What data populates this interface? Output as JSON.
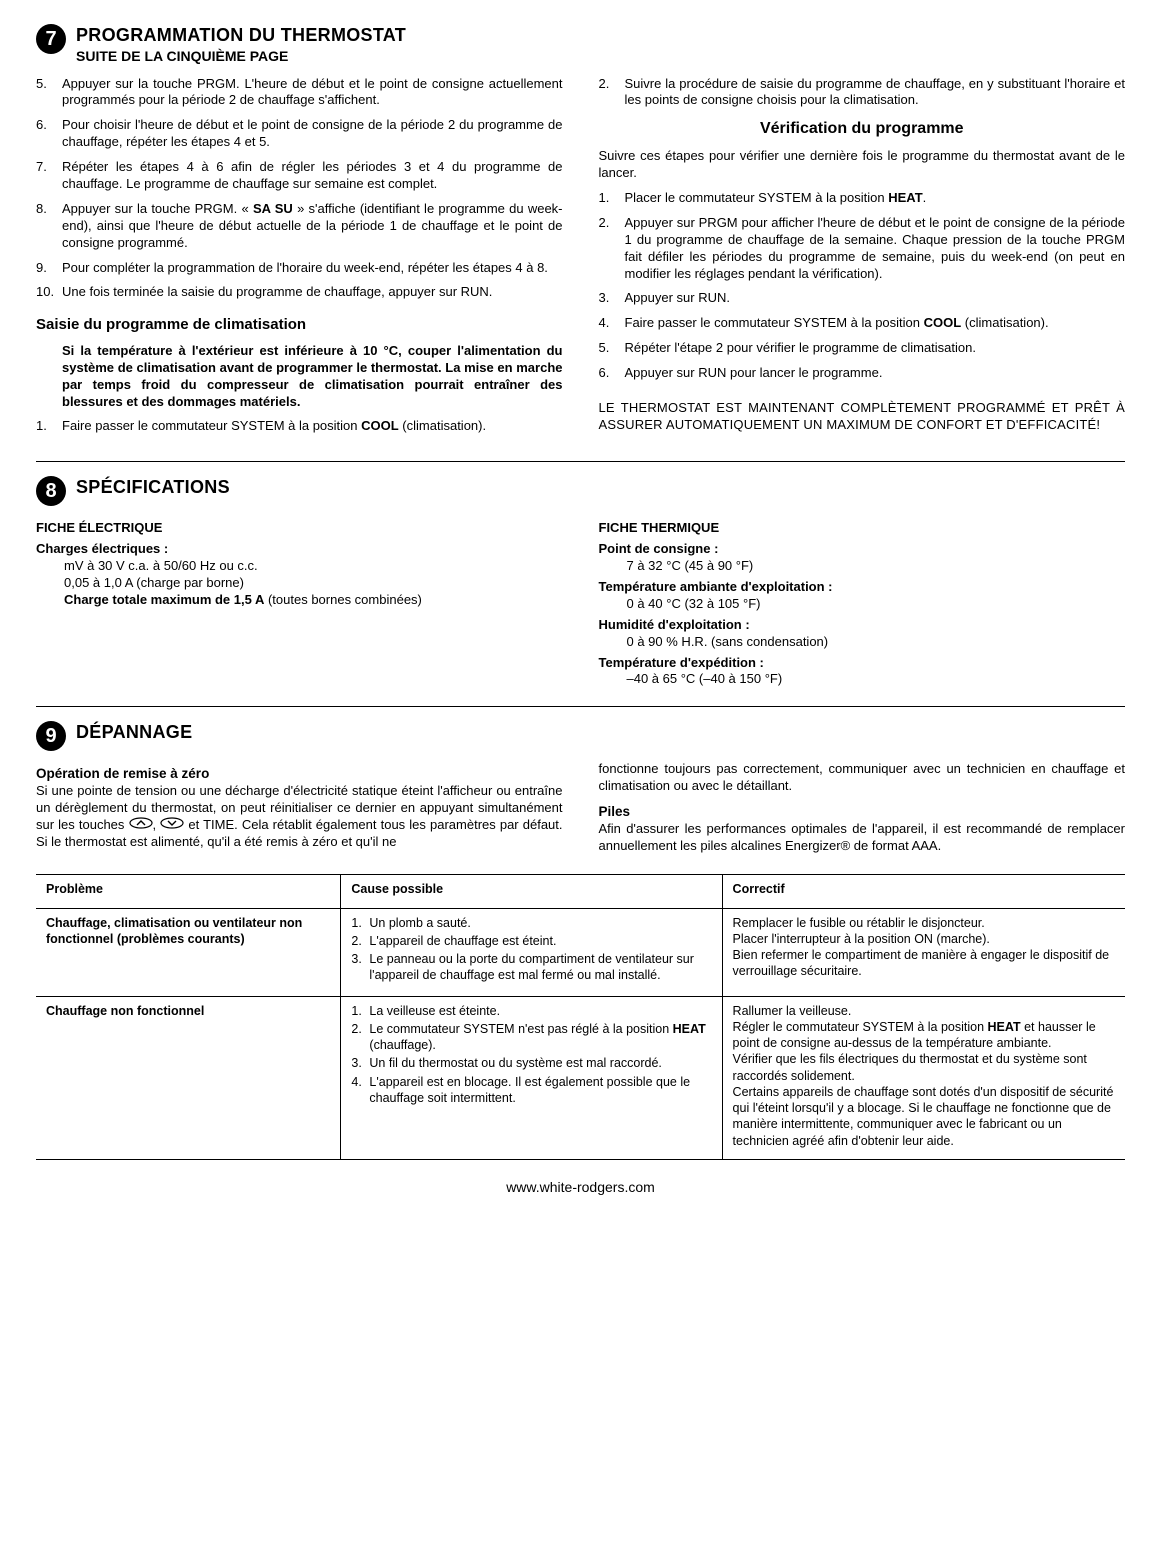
{
  "sec7": {
    "number": "7",
    "title": "PROGRAMMATION DU THERMOSTAT",
    "subtitle": "SUITE DE LA CINQUIÈME PAGE",
    "left_items": [
      {
        "n": "5.",
        "t": "Appuyer sur la touche PRGM. L'heure de début et le point de consigne actuellement programmés pour la période 2 de chauffage s'affichent."
      },
      {
        "n": "6.",
        "t": "Pour choisir l'heure de début et le point de consigne de la période 2 du programme de chauffage, répéter les étapes 4 et 5."
      },
      {
        "n": "7.",
        "t": "Répéter les étapes 4 à 6 afin de régler les périodes 3 et 4 du programme de chauffage. Le programme de chauffage sur semaine est complet."
      },
      {
        "n": "8.",
        "html": "Appuyer sur la touche PRGM. « <b>SA SU</b> » s'affiche (identifiant le programme du week-end), ainsi que l'heure de début actuelle de la période 1 de chauffage et le point de consigne programmé."
      },
      {
        "n": "9.",
        "t": "Pour compléter la programmation de l'horaire du week-end, répéter les étapes 4 à 8."
      },
      {
        "n": "10.",
        "t": "Une fois terminée la saisie du programme de chauffage, appuyer sur RUN."
      }
    ],
    "climat_heading": "Saisie du programme de climatisation",
    "climat_warning": "Si la température à l'extérieur est inférieure à 10 °C, couper l'alimentation du système de climatisation avant de programmer le thermostat. La mise en marche par temps froid du compresseur de climatisation pourrait entraîner des blessures et des dommages matériels.",
    "climat_items": [
      {
        "n": "1.",
        "html": "Faire passer le commutateur SYSTEM à la position <b>COOL</b> (climatisation)."
      }
    ],
    "right_prepend": [
      {
        "n": "2.",
        "t": "Suivre la procédure de saisie du programme de chauffage, en y substituant l'horaire et les points de consigne choisis pour la climatisation."
      }
    ],
    "verify_heading": "Vérification du programme",
    "verify_intro": "Suivre ces étapes pour vérifier une dernière fois le programme du thermostat avant de le lancer.",
    "verify_items": [
      {
        "n": "1.",
        "html": "Placer le commutateur SYSTEM à la position <b>HEAT</b>."
      },
      {
        "n": "2.",
        "t": "Appuyer sur PRGM pour afficher l'heure de début et le point de consigne de la période 1 du programme de chauffage de la semaine. Chaque pression de la touche PRGM fait défiler les périodes du programme de semaine, puis du week-end (on peut en modifier les réglages pendant la vérification)."
      },
      {
        "n": "3.",
        "t": "Appuyer sur RUN."
      },
      {
        "n": "4.",
        "html": "Faire passer le commutateur SYSTEM à la position <b>COOL</b> (climatisation)."
      },
      {
        "n": "5.",
        "t": "Répéter l'étape 2 pour vérifier le programme de climatisation."
      },
      {
        "n": "6.",
        "t": "Appuyer sur RUN pour lancer le programme."
      }
    ],
    "final_note": "LE THERMOSTAT EST MAINTENANT COMPLÈTEMENT PROGRAMMÉ ET PRÊT À ASSURER AUTOMATIQUEMENT UN MAXIMUM DE CONFORT ET D'EFFICACITÉ!"
  },
  "sec8": {
    "number": "8",
    "title": "SPÉCIFICATIONS",
    "elec_heading": "FICHE ÉLECTRIQUE",
    "charges_label": "Charges électriques :",
    "charges_lines": [
      "mV à 30 V c.a. à 50/60 Hz ou c.c.",
      "0,05 à 1,0 A (charge par borne)"
    ],
    "charges_bold": "Charge totale maximum de 1,5 A",
    "charges_bold_tail": " (toutes bornes combinées)",
    "therm_heading": "FICHE THERMIQUE",
    "therm_specs": [
      {
        "label": "Point de consigne :",
        "val": "7 à 32 °C (45 à 90 °F)"
      },
      {
        "label": "Température ambiante d'exploitation :",
        "val": "0 à 40 °C (32 à 105 °F)"
      },
      {
        "label": "Humidité d'exploitation :",
        "val": "0 à 90 % H.R. (sans condensation)"
      },
      {
        "label": "Température d'expédition :",
        "val": "–40 à 65 °C (–40 à 150 °F)"
      }
    ]
  },
  "sec9": {
    "number": "9",
    "title": "DÉPANNAGE",
    "reset_heading": "Opération de remise à zéro",
    "reset_p1_a": "Si une pointe de tension ou une décharge d'électricité statique éteint l'afficheur ou entraîne un dérèglement du thermostat, on peut réinitialiser ce dernier en appuyant simultanément sur les touches ",
    "reset_p1_b": ", ",
    "reset_p1_c": " et TIME. Cela rétablit également tous les paramètres par défaut. Si le thermostat est alimenté, qu'il a été remis à zéro et qu'il ne",
    "right_p1": "fonctionne toujours pas correctement, communiquer avec un technicien en chauffage et climatisation ou avec le détaillant.",
    "piles_heading": "Piles",
    "piles_p": "Afin d'assurer les performances optimales de l'appareil, il est recommandé de remplacer annuellement les piles alcalines Energizer® de format AAA.",
    "table": {
      "headers": [
        "Problème",
        "Cause possible",
        "Correctif"
      ],
      "rows": [
        {
          "problem": "Chauffage, climatisation ou ventilateur non fonctionnel (problèmes courants)",
          "causes": [
            {
              "n": "1.",
              "t": "Un plomb a sauté."
            },
            {
              "n": "2.",
              "t": "L'appareil de chauffage est éteint."
            },
            {
              "n": "3.",
              "t": "Le panneau ou la porte du compartiment de ventilateur sur l'appareil de chauffage est mal fermé ou mal installé."
            }
          ],
          "fix": "Remplacer le fusible ou rétablir le disjoncteur.\nPlacer l'interrupteur à la position ON (marche).\nBien refermer le compartiment de manière à engager le dispositif de verrouillage sécuritaire."
        },
        {
          "problem": "Chauffage non fonctionnel",
          "causes": [
            {
              "n": "1.",
              "t": "La veilleuse est éteinte."
            },
            {
              "n": "2.",
              "html": "Le commutateur SYSTEM n'est pas réglé à la position <b>HEAT</b> (chauffage)."
            },
            {
              "n": "3.",
              "t": "Un fil du thermostat ou du système est mal raccordé."
            },
            {
              "n": "4.",
              "t": "L'appareil est en blocage. Il est également possible que le chauffage soit intermittent."
            }
          ],
          "fix_html": "Rallumer la veilleuse.<br>Régler le commutateur SYSTEM à la position <b>HEAT</b> et hausser le point de consigne au-dessus de la température ambiante.<br>Vérifier que les fils électriques du thermostat et du système sont raccordés solidement.<br>Certains appareils de chauffage sont dotés d'un dispositif de sécurité qui l'éteint lorsqu'il y a blocage. Si le chauffage ne fonctionne que de manière intermittente, communiquer avec le fabricant ou un technicien agréé afin d'obtenir leur aide."
        }
      ]
    }
  },
  "footer_url": "www.white-rodgers.com"
}
